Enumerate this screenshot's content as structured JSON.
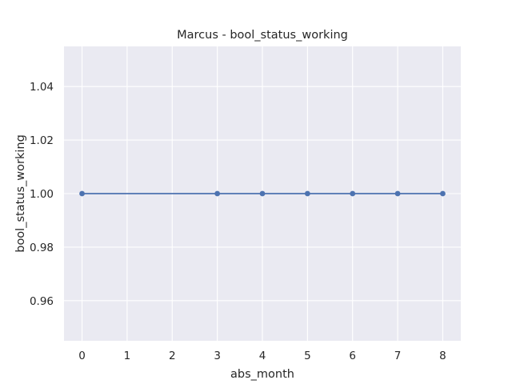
{
  "chart_data": {
    "type": "line",
    "title": "Marcus - bool_status_working",
    "xlabel": "abs_month",
    "ylabel": "bool_status_working",
    "x": [
      0,
      3,
      4,
      5,
      6,
      7,
      8
    ],
    "series": [
      {
        "values": [
          1.0,
          1.0,
          1.0,
          1.0,
          1.0,
          1.0,
          1.0
        ]
      }
    ],
    "xlim": [
      -0.4,
      8.4
    ],
    "ylim": [
      0.945,
      1.055
    ],
    "xticks": [
      0,
      1,
      2,
      3,
      4,
      5,
      6,
      7,
      8
    ],
    "xtick_labels": [
      "0",
      "1",
      "2",
      "3",
      "4",
      "5",
      "6",
      "7",
      "8"
    ],
    "yticks": [
      0.96,
      0.98,
      1.0,
      1.02,
      1.04
    ],
    "ytick_labels": [
      "0.96",
      "0.98",
      "1.00",
      "1.02",
      "1.04"
    ],
    "grid": true,
    "markers": true,
    "colors": {
      "background": "#eaeaf2",
      "grid": "#ffffff",
      "line": "#4c72b0",
      "text": "#262626"
    }
  }
}
